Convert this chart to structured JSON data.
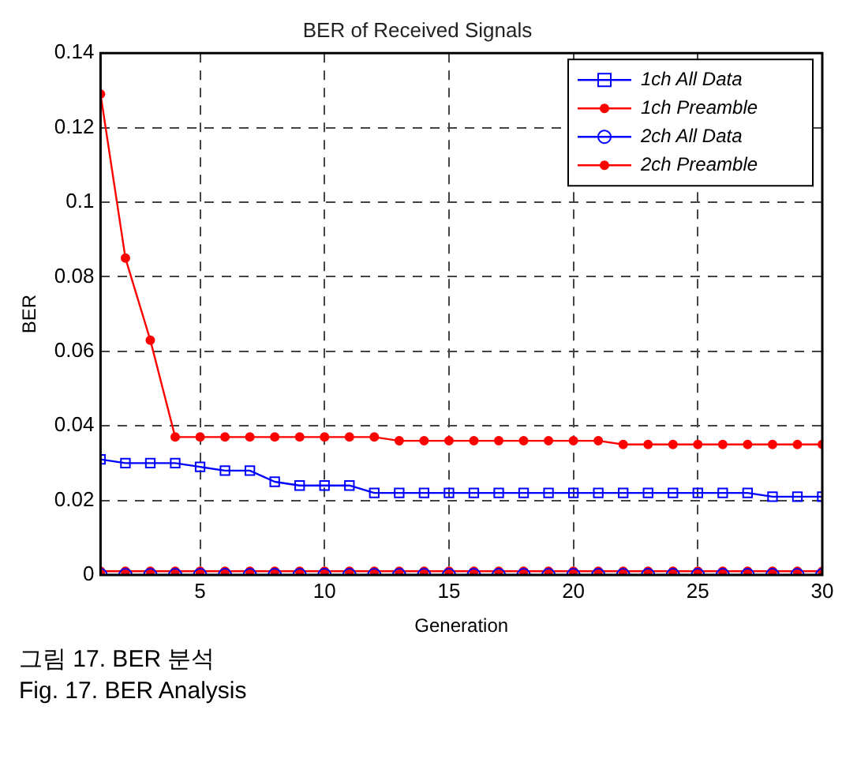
{
  "chart_data": {
    "type": "line",
    "title": "BER of Received Signals",
    "xlabel": "Generation",
    "ylabel": "BER",
    "x": [
      1,
      2,
      3,
      4,
      5,
      6,
      7,
      8,
      9,
      10,
      11,
      12,
      13,
      14,
      15,
      16,
      17,
      18,
      19,
      20,
      21,
      22,
      23,
      24,
      25,
      26,
      27,
      28,
      29,
      30
    ],
    "series": [
      {
        "name": "1ch All Data",
        "color": "#0000ff",
        "marker": "square",
        "values": [
          0.031,
          0.03,
          0.03,
          0.03,
          0.029,
          0.028,
          0.028,
          0.025,
          0.024,
          0.024,
          0.024,
          0.022,
          0.022,
          0.022,
          0.022,
          0.022,
          0.022,
          0.022,
          0.022,
          0.022,
          0.022,
          0.022,
          0.022,
          0.022,
          0.022,
          0.022,
          0.022,
          0.021,
          0.021,
          0.021
        ]
      },
      {
        "name": "1ch Preamble",
        "color": "#ff0000",
        "marker": "circle",
        "values": [
          0.129,
          0.085,
          0.063,
          0.037,
          0.037,
          0.037,
          0.037,
          0.037,
          0.037,
          0.037,
          0.037,
          0.037,
          0.036,
          0.036,
          0.036,
          0.036,
          0.036,
          0.036,
          0.036,
          0.036,
          0.036,
          0.035,
          0.035,
          0.035,
          0.035,
          0.035,
          0.035,
          0.035,
          0.035,
          0.035
        ]
      },
      {
        "name": "2ch All Data",
        "color": "#0000ff",
        "marker": "circle",
        "values": [
          0,
          0,
          0,
          0,
          0,
          0,
          0,
          0,
          0,
          0,
          0,
          0,
          0,
          0,
          0,
          0,
          0,
          0,
          0,
          0,
          0,
          0,
          0,
          0,
          0,
          0,
          0,
          0,
          0,
          0
        ]
      },
      {
        "name": "2ch Preamble",
        "color": "#ff0000",
        "marker": "circle",
        "values": [
          0.001,
          0.001,
          0.001,
          0.001,
          0.001,
          0.001,
          0.001,
          0.001,
          0.001,
          0.001,
          0.001,
          0.001,
          0.001,
          0.001,
          0.001,
          0.001,
          0.001,
          0.001,
          0.001,
          0.001,
          0.001,
          0.001,
          0.001,
          0.001,
          0.001,
          0.001,
          0.001,
          0.001,
          0.001,
          0.001
        ]
      }
    ],
    "xlim": [
      1,
      30
    ],
    "xticks": [
      5,
      10,
      15,
      20,
      25,
      30
    ],
    "ylim": [
      0,
      0.14
    ],
    "yticks": [
      0,
      0.02,
      0.04,
      0.06,
      0.08,
      0.1,
      0.12,
      0.14
    ],
    "grid": true,
    "legend": "top right",
    "line_style": "solid",
    "annotations": [
      "그림 17. BER 분석",
      "Fig. 17. BER Analysis"
    ]
  }
}
